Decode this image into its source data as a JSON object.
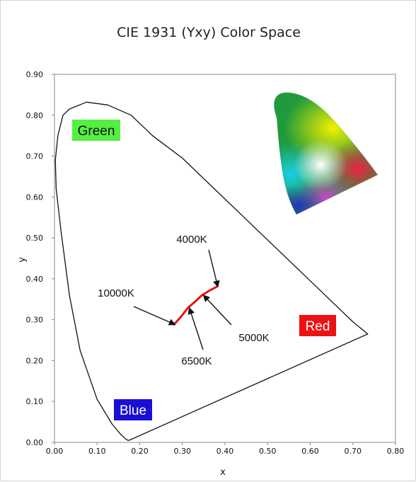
{
  "chart_data": {
    "type": "line",
    "title": "CIE 1931 (Yxy) Color Space",
    "xlabel": "x",
    "ylabel": "y",
    "xlim": [
      0,
      0.8
    ],
    "ylim": [
      0,
      0.9
    ],
    "grid": false,
    "x_ticks": [
      "0.00",
      "0.10",
      "0.20",
      "0.30",
      "0.40",
      "0.50",
      "0.60",
      "0.70",
      "0.80"
    ],
    "y_ticks": [
      "0.00",
      "0.10",
      "0.20",
      "0.30",
      "0.40",
      "0.50",
      "0.60",
      "0.70",
      "0.80",
      "0.90"
    ],
    "spectral_locus": {
      "x": [
        0.175,
        0.172,
        0.166,
        0.155,
        0.135,
        0.1,
        0.06,
        0.035,
        0.015,
        0.004,
        0.002,
        0.008,
        0.02,
        0.035,
        0.075,
        0.125,
        0.18,
        0.23,
        0.3,
        0.37,
        0.44,
        0.51,
        0.58,
        0.65,
        0.7,
        0.735
      ],
      "y": [
        0.005,
        0.005,
        0.009,
        0.02,
        0.045,
        0.105,
        0.225,
        0.36,
        0.52,
        0.62,
        0.69,
        0.75,
        0.8,
        0.815,
        0.832,
        0.825,
        0.8,
        0.75,
        0.695,
        0.625,
        0.555,
        0.485,
        0.415,
        0.345,
        0.295,
        0.265
      ]
    },
    "series": [
      {
        "name": "",
        "color": "#ee1111",
        "x": [
          0.28,
          0.295,
          0.313,
          0.33,
          0.346,
          0.365,
          0.38
        ],
        "y": [
          0.288,
          0.305,
          0.329,
          0.344,
          0.36,
          0.372,
          0.38
        ]
      }
    ],
    "annotations": [
      {
        "text": "4000K",
        "x": 0.38,
        "y": 0.38
      },
      {
        "text": "10000K",
        "x": 0.28,
        "y": 0.288
      },
      {
        "text": "5000K",
        "x": 0.346,
        "y": 0.36
      },
      {
        "text": "6500K",
        "x": 0.313,
        "y": 0.329
      }
    ],
    "regions": [
      {
        "text": "Green",
        "color": "#55ee44",
        "text_color": "#111111"
      },
      {
        "text": "Red",
        "color": "#ee1111",
        "text_color": "#ffffff"
      },
      {
        "text": "Blue",
        "color": "#1a0fd6",
        "text_color": "#ffffff"
      }
    ],
    "inset": "cie-chromaticity-thumbnail"
  }
}
